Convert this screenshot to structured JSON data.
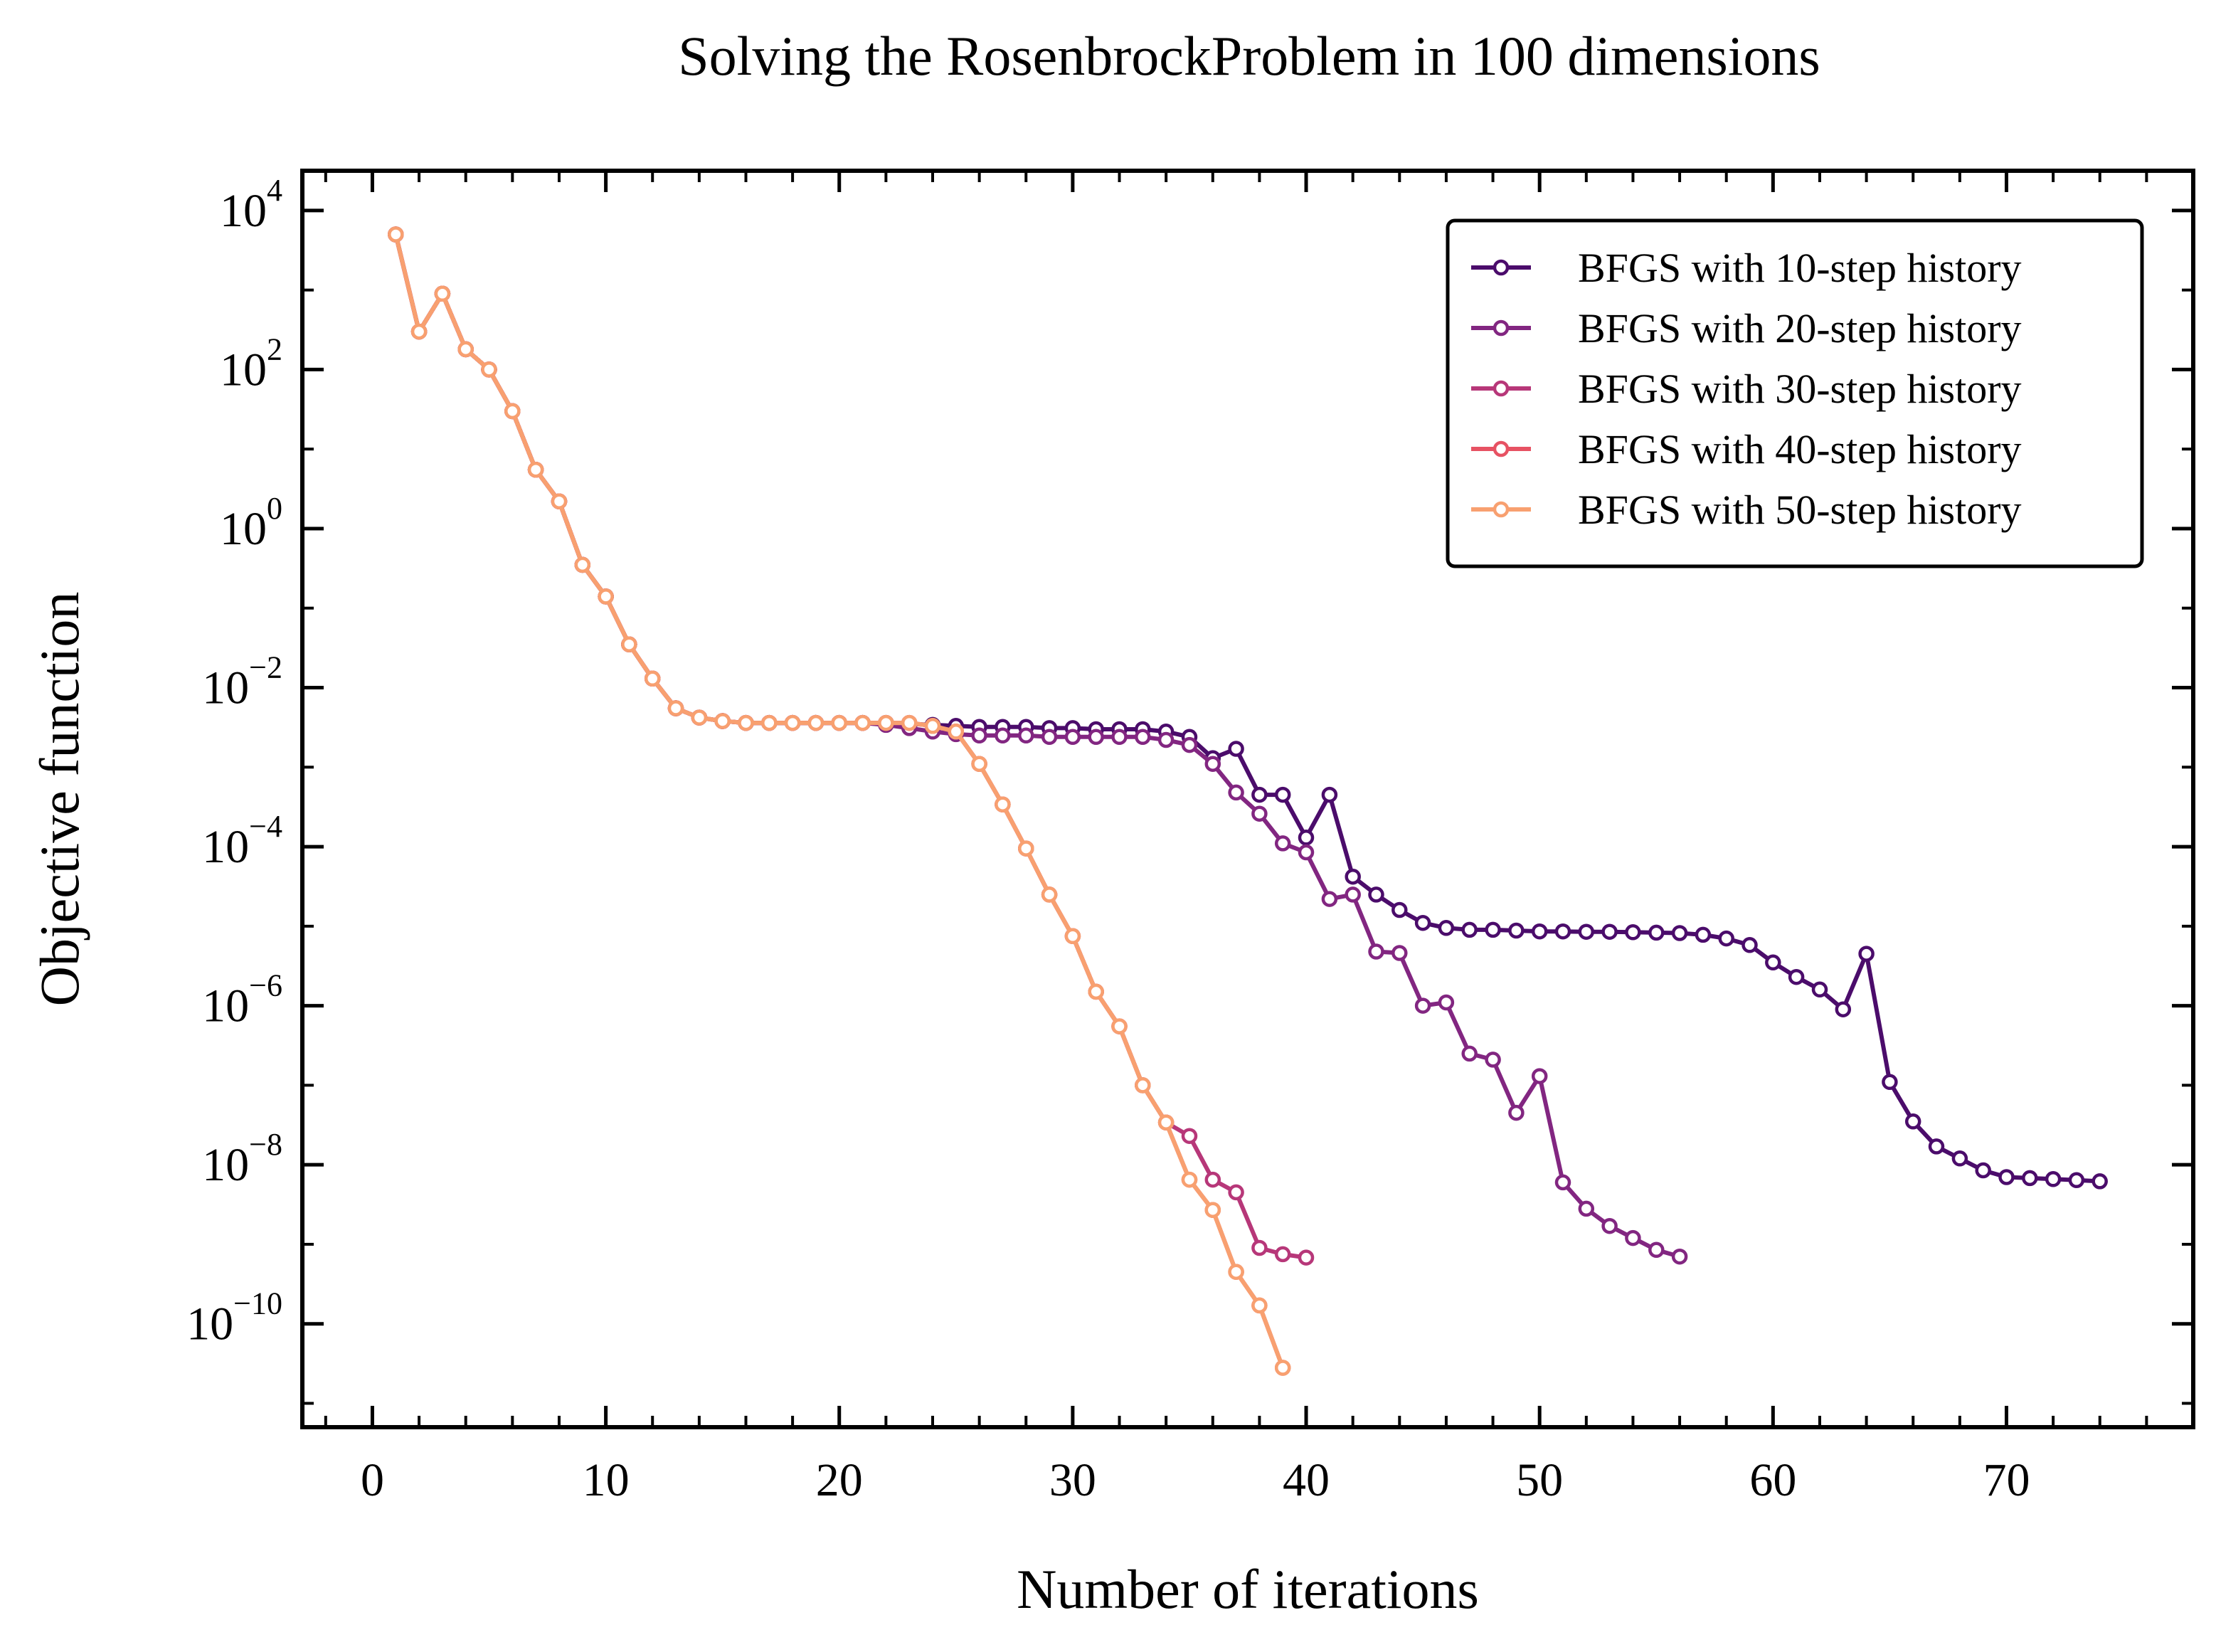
{
  "chart_data": {
    "type": "line",
    "title": "Solving the RosenbrockProblem in 100 dimensions",
    "xlabel": "Number of iterations",
    "ylabel": "Objective function",
    "yscale": "log",
    "xlim": [
      -3,
      78
    ],
    "ylim_log10": [
      -11.3,
      4.5
    ],
    "xticks": [
      0,
      10,
      20,
      30,
      40,
      50,
      60,
      70
    ],
    "xtick_labels": [
      "0",
      "10",
      "20",
      "30",
      "40",
      "50",
      "60",
      "70"
    ],
    "yticks": [
      {
        "base": "10",
        "exp": "4",
        "value": 10000
      },
      {
        "base": "10",
        "exp": "2",
        "value": 100
      },
      {
        "base": "10",
        "exp": "0",
        "value": 1
      },
      {
        "base": "10",
        "exp": "−2",
        "value": 0.01
      },
      {
        "base": "10",
        "exp": "−4",
        "value": 0.0001
      },
      {
        "base": "10",
        "exp": "−6",
        "value": 1e-06
      },
      {
        "base": "10",
        "exp": "−8",
        "value": 1e-08
      },
      {
        "base": "10",
        "exp": "−10",
        "value": 1e-10
      }
    ],
    "grid": false,
    "legend_position": "top-right",
    "series": [
      {
        "name": "BFGS with 10-step history",
        "color": "#4b0c6b",
        "x": [
          1,
          2,
          3,
          4,
          5,
          6,
          7,
          8,
          9,
          10,
          11,
          12,
          13,
          14,
          15,
          16,
          17,
          18,
          19,
          20,
          21,
          22,
          23,
          24,
          25,
          26,
          27,
          28,
          29,
          30,
          31,
          32,
          33,
          34,
          35,
          36,
          37,
          38,
          39,
          40,
          41,
          42,
          43,
          44,
          45,
          46,
          47,
          48,
          49,
          50,
          51,
          52,
          53,
          54,
          55,
          56,
          57,
          58,
          59,
          60,
          61,
          62,
          63,
          64,
          65,
          66,
          67,
          68,
          69,
          70,
          71,
          72,
          73,
          74
        ],
        "y": [
          5000,
          300,
          900,
          180,
          100,
          30,
          5.5,
          2.2,
          0.35,
          0.14,
          0.035,
          0.013,
          0.0055,
          0.0042,
          0.0038,
          0.0036,
          0.0036,
          0.0036,
          0.0036,
          0.0036,
          0.0036,
          0.0036,
          0.0035,
          0.0034,
          0.0033,
          0.0032,
          0.0032,
          0.0032,
          0.0031,
          0.0031,
          0.003,
          0.003,
          0.003,
          0.0028,
          0.0024,
          0.0013,
          0.0017,
          0.00045,
          0.00045,
          0.00013,
          0.00045,
          4.2e-05,
          2.5e-05,
          1.6e-05,
          1.1e-05,
          9.5e-06,
          9e-06,
          9e-06,
          8.8e-06,
          8.6e-06,
          8.6e-06,
          8.5e-06,
          8.5e-06,
          8.4e-06,
          8.3e-06,
          8.2e-06,
          7.8e-06,
          7e-06,
          5.8e-06,
          3.5e-06,
          2.3e-06,
          1.6e-06,
          9e-07,
          4.5e-06,
          1.1e-07,
          3.5e-08,
          1.7e-08,
          1.2e-08,
          8.5e-09,
          7e-09,
          6.8e-09,
          6.6e-09,
          6.4e-09,
          6.2e-09
        ]
      },
      {
        "name": "BFGS with 20-step history",
        "color": "#822681",
        "x": [
          1,
          2,
          3,
          4,
          5,
          6,
          7,
          8,
          9,
          10,
          11,
          12,
          13,
          14,
          15,
          16,
          17,
          18,
          19,
          20,
          21,
          22,
          23,
          24,
          25,
          26,
          27,
          28,
          29,
          30,
          31,
          32,
          33,
          34,
          35,
          36,
          37,
          38,
          39,
          40,
          41,
          42,
          43,
          44,
          45,
          46,
          47,
          48,
          49,
          50,
          51,
          52,
          53,
          54,
          55,
          56
        ],
        "y": [
          5000,
          300,
          900,
          180,
          100,
          30,
          5.5,
          2.2,
          0.35,
          0.14,
          0.035,
          0.013,
          0.0055,
          0.0042,
          0.0038,
          0.0036,
          0.0036,
          0.0036,
          0.0036,
          0.0036,
          0.0036,
          0.0034,
          0.0031,
          0.0028,
          0.0026,
          0.0025,
          0.0025,
          0.0025,
          0.0024,
          0.0024,
          0.0024,
          0.0024,
          0.0024,
          0.0022,
          0.0019,
          0.0011,
          0.00048,
          0.00026,
          0.00011,
          8.5e-05,
          2.2e-05,
          2.5e-05,
          4.8e-06,
          4.6e-06,
          1e-06,
          1.1e-06,
          2.5e-07,
          2.1e-07,
          4.5e-08,
          1.3e-07,
          6e-09,
          2.8e-09,
          1.7e-09,
          1.2e-09,
          8.5e-10,
          7e-10
        ]
      },
      {
        "name": "BFGS with 30-step history",
        "color": "#b73779",
        "x": [
          1,
          2,
          3,
          4,
          5,
          6,
          7,
          8,
          9,
          10,
          11,
          12,
          13,
          14,
          15,
          16,
          17,
          18,
          19,
          20,
          21,
          22,
          23,
          24,
          25,
          26,
          27,
          28,
          29,
          30,
          31,
          32,
          33,
          34,
          35,
          36,
          37,
          38,
          39,
          40
        ],
        "y": [
          5000,
          300,
          900,
          180,
          100,
          30,
          5.5,
          2.2,
          0.35,
          0.14,
          0.035,
          0.013,
          0.0055,
          0.0042,
          0.0038,
          0.0036,
          0.0036,
          0.0036,
          0.0036,
          0.0036,
          0.0036,
          0.0036,
          0.0036,
          0.0033,
          0.0028,
          0.0011,
          0.00034,
          9.5e-05,
          2.5e-05,
          7.5e-06,
          1.5e-06,
          5.5e-07,
          1e-07,
          3.4e-08,
          2.3e-08,
          6.5e-09,
          4.5e-09,
          9e-10,
          7.5e-10,
          6.8e-10
        ]
      },
      {
        "name": "BFGS with 40-step history",
        "color": "#e75263",
        "x": [
          1,
          2,
          3,
          4,
          5,
          6,
          7,
          8,
          9,
          10,
          11,
          12,
          13,
          14,
          15,
          16,
          17,
          18,
          19,
          20,
          21,
          22,
          23,
          24,
          25,
          26,
          27,
          28,
          29,
          30,
          31,
          32,
          33,
          34,
          35,
          36,
          37,
          38,
          39
        ],
        "y": [
          5000,
          300,
          900,
          180,
          100,
          30,
          5.5,
          2.2,
          0.35,
          0.14,
          0.035,
          0.013,
          0.0055,
          0.0042,
          0.0038,
          0.0036,
          0.0036,
          0.0036,
          0.0036,
          0.0036,
          0.0036,
          0.0036,
          0.0036,
          0.0033,
          0.0028,
          0.0011,
          0.00034,
          9.5e-05,
          2.5e-05,
          7.5e-06,
          1.5e-06,
          5.5e-07,
          1e-07,
          3.4e-08,
          6.5e-09,
          2.7e-09,
          4.5e-10,
          1.7e-10,
          2.8e-11
        ]
      },
      {
        "name": "BFGS with 50-step history",
        "color": "#f8a070",
        "x": [
          1,
          2,
          3,
          4,
          5,
          6,
          7,
          8,
          9,
          10,
          11,
          12,
          13,
          14,
          15,
          16,
          17,
          18,
          19,
          20,
          21,
          22,
          23,
          24,
          25,
          26,
          27,
          28,
          29,
          30,
          31,
          32,
          33,
          34,
          35,
          36,
          37,
          38,
          39
        ],
        "y": [
          5000,
          300,
          900,
          180,
          100,
          30,
          5.5,
          2.2,
          0.35,
          0.14,
          0.035,
          0.013,
          0.0055,
          0.0042,
          0.0038,
          0.0036,
          0.0036,
          0.0036,
          0.0036,
          0.0036,
          0.0036,
          0.0036,
          0.0036,
          0.0033,
          0.0028,
          0.0011,
          0.00034,
          9.5e-05,
          2.5e-05,
          7.5e-06,
          1.5e-06,
          5.5e-07,
          1e-07,
          3.4e-08,
          6.5e-09,
          2.7e-09,
          4.5e-10,
          1.7e-10,
          2.8e-11
        ]
      }
    ]
  }
}
